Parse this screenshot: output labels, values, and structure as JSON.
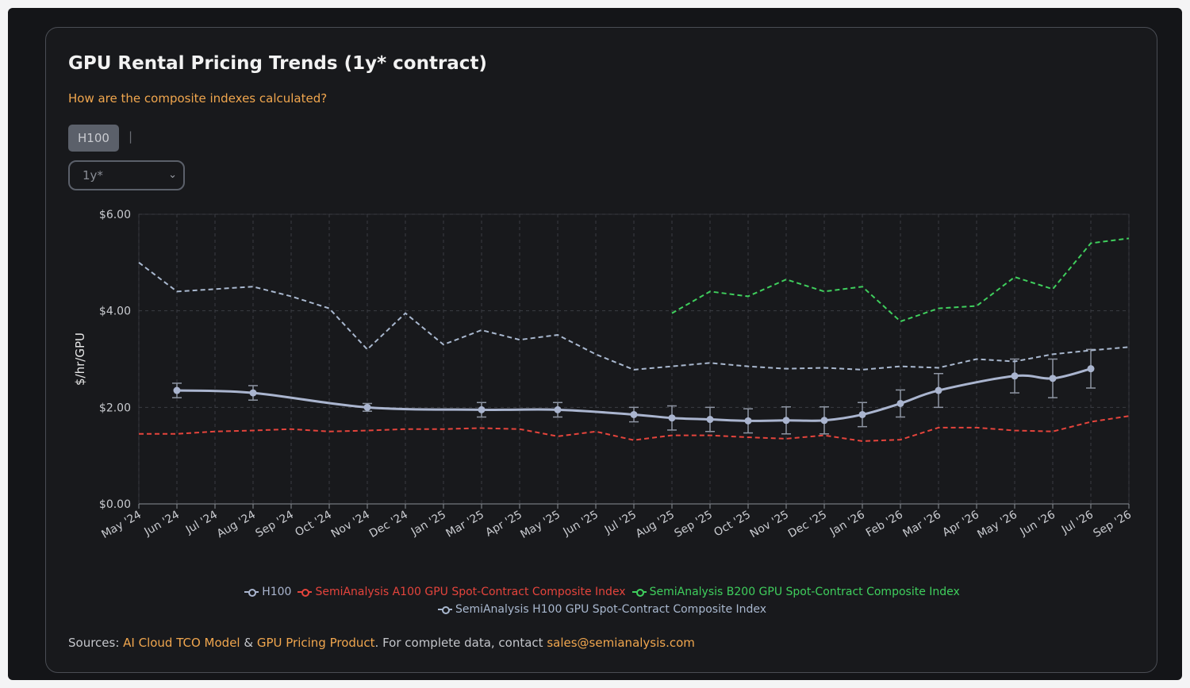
{
  "title": "GPU Rental Pricing Trends (1y* contract)",
  "question_link": "How are the composite indexes calculated?",
  "tabs": [
    {
      "label": "H100",
      "active": true
    }
  ],
  "tab_separator": "|",
  "term_select": {
    "value": "1y*"
  },
  "colors": {
    "h100": "#aab5cf",
    "a100": "#e5443c",
    "b200": "#3fcf5d",
    "h100_index": "#a9b8cf",
    "accent": "#f0a64e"
  },
  "legend": [
    {
      "key": "h100",
      "label": "H100"
    },
    {
      "key": "a100",
      "label": "SemiAnalysis A100 GPU Spot-Contract Composite Index"
    },
    {
      "key": "b200",
      "label": "SemiAnalysis B200 GPU Spot-Contract Composite Index"
    },
    {
      "key": "h100_index",
      "label": "SemiAnalysis H100 GPU Spot-Contract Composite Index"
    }
  ],
  "sources": {
    "prefix": "Sources: ",
    "link1": "AI Cloud TCO Model",
    "amp": " & ",
    "link2": "GPU Pricing Product",
    "middle": ". For complete data, contact ",
    "email": "sales@semianalysis.com"
  },
  "chart_data": {
    "type": "line",
    "ylabel": "$/hr/GPU",
    "ylim": [
      0,
      6
    ],
    "yticks": [
      0,
      2,
      4,
      6
    ],
    "ytick_labels": [
      "$0.00",
      "$2.00",
      "$4.00",
      "$6.00"
    ],
    "grid": true,
    "x_tick_labels": [
      "May '24",
      "Jun '24",
      "Jul '24",
      "Aug '24",
      "Sep '24",
      "Oct '24",
      "Nov '24",
      "Dec '24",
      "Jan '25",
      "Mar '25",
      "Apr '25",
      "May '25",
      "Jun '25",
      "Jul '25",
      "Aug '25",
      "Sep '25",
      "Oct '25",
      "Nov '25",
      "Dec '25",
      "Jan '26",
      "Feb '26",
      "Mar '26",
      "Apr '26",
      "May '26",
      "Jun '26",
      "Jul '26",
      "Sep '26"
    ],
    "series": [
      {
        "name": "H100",
        "key": "h100",
        "style": "solid",
        "points": [
          {
            "x": "Jun '24",
            "y": 2.35,
            "err": 0.15
          },
          {
            "x": "Aug '24",
            "y": 2.3,
            "err": 0.15
          },
          {
            "x": "Nov '24",
            "y": 2.0,
            "err": 0.08
          },
          {
            "x": "Mar '25",
            "y": 1.95,
            "err": 0.15
          },
          {
            "x": "May '25",
            "y": 1.95,
            "err": 0.15
          },
          {
            "x": "Jul '25",
            "y": 1.85,
            "err": 0.15
          },
          {
            "x": "Aug '25",
            "y": 1.78,
            "err": 0.25
          },
          {
            "x": "Sep '25",
            "y": 1.75,
            "err": 0.25
          },
          {
            "x": "Oct '25",
            "y": 1.72,
            "err": 0.25
          },
          {
            "x": "Nov '25",
            "y": 1.73,
            "err": 0.28
          },
          {
            "x": "Dec '25",
            "y": 1.73,
            "err": 0.28
          },
          {
            "x": "Jan '26",
            "y": 1.85,
            "err": 0.25
          },
          {
            "x": "Feb '26",
            "y": 2.08,
            "err": 0.28
          },
          {
            "x": "Mar '26",
            "y": 2.35,
            "err": 0.35
          },
          {
            "x": "May '26",
            "y": 2.65,
            "err": 0.35
          },
          {
            "x": "Jun '26",
            "y": 2.6,
            "err": 0.4
          },
          {
            "x": "Jul '26",
            "y": 2.8,
            "err": 0.4
          }
        ]
      },
      {
        "name": "SemiAnalysis A100 GPU Spot-Contract Composite Index",
        "key": "a100",
        "style": "dashed",
        "points": [
          {
            "x": "May '24",
            "y": 1.45
          },
          {
            "x": "Jun '24",
            "y": 1.45
          },
          {
            "x": "Jul '24",
            "y": 1.5
          },
          {
            "x": "Aug '24",
            "y": 1.52
          },
          {
            "x": "Sep '24",
            "y": 1.55
          },
          {
            "x": "Oct '24",
            "y": 1.5
          },
          {
            "x": "Nov '24",
            "y": 1.52
          },
          {
            "x": "Dec '24",
            "y": 1.55
          },
          {
            "x": "Jan '25",
            "y": 1.55
          },
          {
            "x": "Mar '25",
            "y": 1.57
          },
          {
            "x": "Apr '25",
            "y": 1.55
          },
          {
            "x": "May '25",
            "y": 1.4
          },
          {
            "x": "Jun '25",
            "y": 1.5
          },
          {
            "x": "Jul '25",
            "y": 1.32
          },
          {
            "x": "Aug '25",
            "y": 1.42
          },
          {
            "x": "Sep '25",
            "y": 1.42
          },
          {
            "x": "Oct '25",
            "y": 1.38
          },
          {
            "x": "Nov '25",
            "y": 1.35
          },
          {
            "x": "Dec '25",
            "y": 1.42
          },
          {
            "x": "Jan '26",
            "y": 1.3
          },
          {
            "x": "Feb '26",
            "y": 1.33
          },
          {
            "x": "Mar '26",
            "y": 1.58
          },
          {
            "x": "Apr '26",
            "y": 1.58
          },
          {
            "x": "May '26",
            "y": 1.52
          },
          {
            "x": "Jun '26",
            "y": 1.5
          },
          {
            "x": "Jul '26",
            "y": 1.7
          },
          {
            "x": "Sep '26",
            "y": 1.82
          }
        ]
      },
      {
        "name": "SemiAnalysis B200 GPU Spot-Contract Composite Index",
        "key": "b200",
        "style": "dashed",
        "points": [
          {
            "x": "Aug '25",
            "y": 3.95
          },
          {
            "x": "Sep '25",
            "y": 4.4
          },
          {
            "x": "Oct '25",
            "y": 4.3
          },
          {
            "x": "Nov '25",
            "y": 4.65
          },
          {
            "x": "Dec '25",
            "y": 4.4
          },
          {
            "x": "Jan '26",
            "y": 4.5
          },
          {
            "x": "Feb '26",
            "y": 3.78
          },
          {
            "x": "Mar '26",
            "y": 4.05
          },
          {
            "x": "Apr '26",
            "y": 4.1
          },
          {
            "x": "May '26",
            "y": 4.7
          },
          {
            "x": "Jun '26",
            "y": 4.45
          },
          {
            "x": "Jul '26",
            "y": 5.4
          },
          {
            "x": "Sep '26",
            "y": 5.5
          }
        ]
      },
      {
        "name": "SemiAnalysis H100 GPU Spot-Contract Composite Index",
        "key": "h100_index",
        "style": "dashed",
        "points": [
          {
            "x": "May '24",
            "y": 5.0
          },
          {
            "x": "Jun '24",
            "y": 4.4
          },
          {
            "x": "Jul '24",
            "y": 4.45
          },
          {
            "x": "Aug '24",
            "y": 4.5
          },
          {
            "x": "Sep '24",
            "y": 4.3
          },
          {
            "x": "Oct '24",
            "y": 4.05
          },
          {
            "x": "Nov '24",
            "y": 3.2
          },
          {
            "x": "Dec '24",
            "y": 3.95
          },
          {
            "x": "Jan '25",
            "y": 3.3
          },
          {
            "x": "Mar '25",
            "y": 3.6
          },
          {
            "x": "Apr '25",
            "y": 3.4
          },
          {
            "x": "May '25",
            "y": 3.5
          },
          {
            "x": "Jun '25",
            "y": 3.1
          },
          {
            "x": "Jul '25",
            "y": 2.78
          },
          {
            "x": "Aug '25",
            "y": 2.85
          },
          {
            "x": "Sep '25",
            "y": 2.92
          },
          {
            "x": "Oct '25",
            "y": 2.85
          },
          {
            "x": "Nov '25",
            "y": 2.8
          },
          {
            "x": "Dec '25",
            "y": 2.82
          },
          {
            "x": "Jan '26",
            "y": 2.78
          },
          {
            "x": "Feb '26",
            "y": 2.85
          },
          {
            "x": "Mar '26",
            "y": 2.82
          },
          {
            "x": "Apr '26",
            "y": 3.0
          },
          {
            "x": "May '26",
            "y": 2.95
          },
          {
            "x": "Jun '26",
            "y": 3.1
          },
          {
            "x": "Jul '26",
            "y": 3.18
          },
          {
            "x": "Sep '26",
            "y": 3.25
          }
        ]
      }
    ]
  }
}
